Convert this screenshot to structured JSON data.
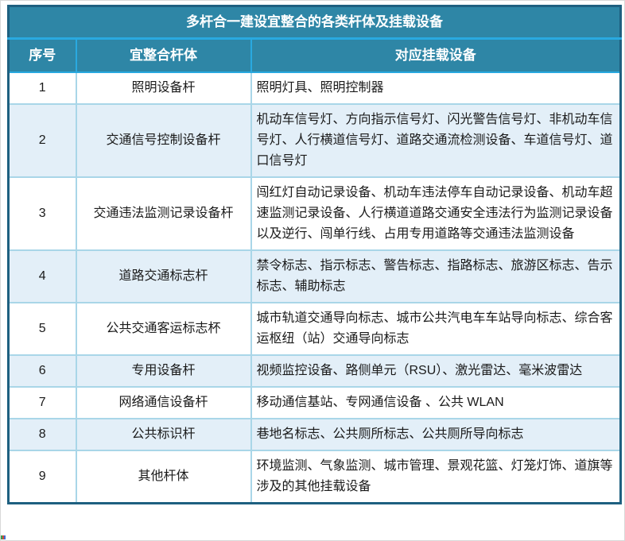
{
  "table": {
    "title": "多杆合一建设宜整合的各类杆体及挂载设备",
    "columns": {
      "no": "序号",
      "pole": "宜整合杆体",
      "devices": "对应挂载设备"
    },
    "rows": [
      {
        "no": "1",
        "pole": "照明设备杆",
        "devices": "照明灯具、照明控制器"
      },
      {
        "no": "2",
        "pole": "交通信号控制设备杆",
        "devices": "机动车信号灯、方向指示信号灯、闪光警告信号灯、非机动车信号灯、人行横道信号灯、道路交通流检测设备、车道信号灯、道口信号灯"
      },
      {
        "no": "3",
        "pole": "交通违法监测记录设备杆",
        "devices": "闯红灯自动记录设备、机动车违法停车自动记录设备、机动车超速监测记录设备、人行横道道路交通安全违法行为监测记录设备以及逆行、闯单行线、占用专用道路等交通违法监测设备"
      },
      {
        "no": "4",
        "pole": "道路交通标志杆",
        "devices": "禁令标志、指示标志、警告标志、指路标志、旅游区标志、告示标志、辅助标志"
      },
      {
        "no": "5",
        "pole": "公共交通客运标志杯",
        "devices": "城市轨道交通导向标志、城市公共汽电车车站导向标志、综合客运枢纽（站）交通导向标志"
      },
      {
        "no": "6",
        "pole": "专用设备杆",
        "devices": "视频监控设备、路侧单元（RSU）、激光雷达、毫米波雷达"
      },
      {
        "no": "7",
        "pole": "网络通信设备杆",
        "devices": "移动通信基站、专网通信设备 、公共 WLAN"
      },
      {
        "no": "8",
        "pole": "公共标识杆",
        "devices": "巷地名标志、公共厕所标志、公共厕所导向标志"
      },
      {
        "no": "9",
        "pole": "其他杆体",
        "devices": "环境监测、气象监测、城市管理、景观花篮、灯笼灯饰、道旗等涉及的其他挂载设备"
      }
    ]
  },
  "colors": {
    "header-bg": "#2E86A6",
    "header-text": "#FFFFFF",
    "outer-border": "#1E6080",
    "accent-line": "#29A9E0",
    "cell-border": "#A9D6E8",
    "row-alt-bg": "#E3EFF8",
    "row-bg": "#FFFFFF",
    "body-text": "#1A1A1A"
  }
}
